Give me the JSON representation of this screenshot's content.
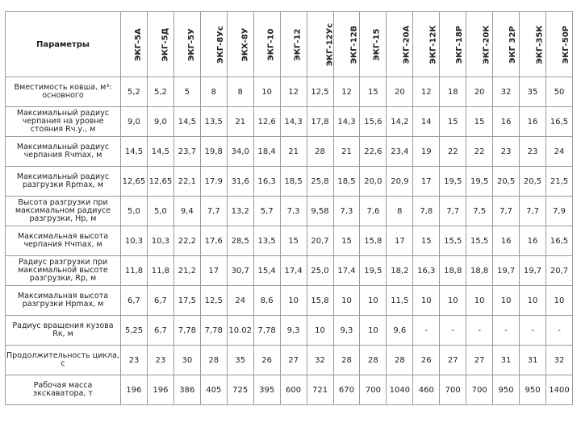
{
  "table": {
    "header": [
      "Параметры",
      "ЭКГ-5А",
      "ЭКГ-5Д",
      "ЭКГ-5У",
      "ЭКГ-8Ус",
      "ЭКХ-8У",
      "ЭКГ-10",
      "ЭКГ-12",
      "ЭКГ-12Ус",
      "ЭКГ-12В",
      "ЭКГ-15",
      "ЭКГ-20А",
      "ЭКГ-12К",
      "ЭКГ-18Р",
      "ЭКГ-20К",
      "ЭКГ 32Р",
      "ЭКГ-35К",
      "ЭКГ-50Р"
    ],
    "rows": [
      [
        "Вместимость ковша, м³: основного",
        "5,2",
        "5,2",
        "5",
        "8",
        "8",
        "10",
        "12",
        "12,5",
        "12",
        "15",
        "20",
        "12",
        "18",
        "20",
        "32",
        "35",
        "50"
      ],
      [
        "Максимальный радиус черпания на уровне стояния Rч.у., м",
        "9,0",
        "9,0",
        "14,5",
        "13,5",
        "21",
        "12,6",
        "14,3",
        "17,8",
        "14,3",
        "15,6",
        "14,2",
        "14",
        "15",
        "15",
        "16",
        "16",
        "16,5"
      ],
      [
        "Максимальный радиус черпания Rчmax, м",
        "14,5",
        "14,5",
        "23,7",
        "19,8",
        "34,0",
        "18,4",
        "21",
        "28",
        "21",
        "22,6",
        "23,4",
        "19",
        "22",
        "22",
        "23",
        "23",
        "24"
      ],
      [
        "Максимальный радиус разгрузки Rрmax, м",
        "12,65",
        "12,65",
        "22,1",
        "17,9",
        "31,6",
        "16,3",
        "18,5",
        "25,8",
        "18,5",
        "20,0",
        "20,9",
        "17",
        "19,5",
        "19,5",
        "20,5",
        "20,5",
        "21,5"
      ],
      [
        "Высота разгрузки при максимальном радиусе разгрузки, Hр, м",
        "5,0",
        "5,0",
        "9,4",
        "7,7",
        "13,2",
        "5,7",
        "7,3",
        "9,58",
        "7,3",
        "7,6",
        "8",
        "7,8",
        "7,7",
        "7,5",
        "7,7",
        "7,7",
        "7,9"
      ],
      [
        "Максимальная высота черпания Hчmax, м",
        "10,3",
        "10,3",
        "22,2",
        "17,6",
        "28,5",
        "13,5",
        "15",
        "20,7",
        "15",
        "15,8",
        "17",
        "15",
        "15,5",
        "15,5",
        "16",
        "16",
        "16,5"
      ],
      [
        "Радиус разгрузки при максимальной высоте разгрузки, Rр, м",
        "11,8",
        "11,8",
        "21,2",
        "17",
        "30,7",
        "15,4",
        "17,4",
        "25,0",
        "17,4",
        "19,5",
        "18,2",
        "16,3",
        "18,8",
        "18,8",
        "19,7",
        "19,7",
        "20,7"
      ],
      [
        "Максимальная высота разгрузки Hрmax, м",
        "6,7",
        "6,7",
        "17,5",
        "12,5",
        "24",
        "8,6",
        "10",
        "15,8",
        "10",
        "10",
        "11,5",
        "10",
        "10",
        "10",
        "10",
        "10",
        "10"
      ],
      [
        "Радиус вращения кузова Rк, м",
        "5,25",
        "6,7",
        "7,78",
        "7,78",
        "10.02",
        "7,78",
        "9,3",
        "10",
        "9,3",
        "10",
        "9,6",
        "-",
        "-",
        "-",
        "-",
        "-",
        "-"
      ],
      [
        "Продолжительность цикла, с",
        "23",
        "23",
        "30",
        "28",
        "35",
        "26",
        "27",
        "32",
        "28",
        "28",
        "28",
        "26",
        "27",
        "27",
        "31",
        "31",
        "32"
      ],
      [
        "Рабочая масса экскаватора, т",
        "196",
        "196",
        "386",
        "405",
        "725",
        "395",
        "600",
        "721",
        "670",
        "700",
        "1040",
        "460",
        "700",
        "700",
        "950",
        "950",
        "1400"
      ]
    ]
  }
}
